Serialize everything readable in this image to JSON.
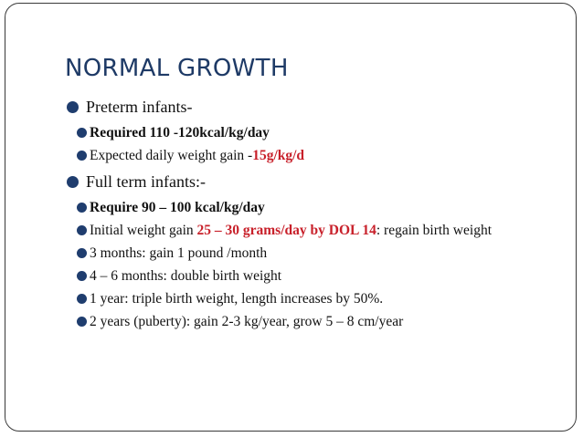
{
  "title": "NORMAL GROWTH",
  "preterm": {
    "heading": "Preterm infants-",
    "required": "Required 110 -120kcal/kg/day",
    "gain_prefix": "Expected daily weight gain -",
    "gain_value": "15g/kg/d"
  },
  "fullterm": {
    "heading": "Full term infants:-",
    "require": "Require 90 – 100 kcal/kg/day",
    "initial_prefix": "Initial weight gain ",
    "initial_value": "25 – 30 grams/day by DOL 14",
    "initial_suffix": ": regain birth weight",
    "items": [
      "3 months: gain 1 pound /month",
      "4 – 6 months: double birth weight",
      "1 year: triple birth weight, length increases by 50%.",
      "2 years (puberty): gain 2-3 kg/year, grow 5 – 8 cm/year"
    ]
  },
  "colors": {
    "title": "#1e3a66",
    "bullet": "#1f3d6e",
    "highlight": "#c8202a"
  }
}
